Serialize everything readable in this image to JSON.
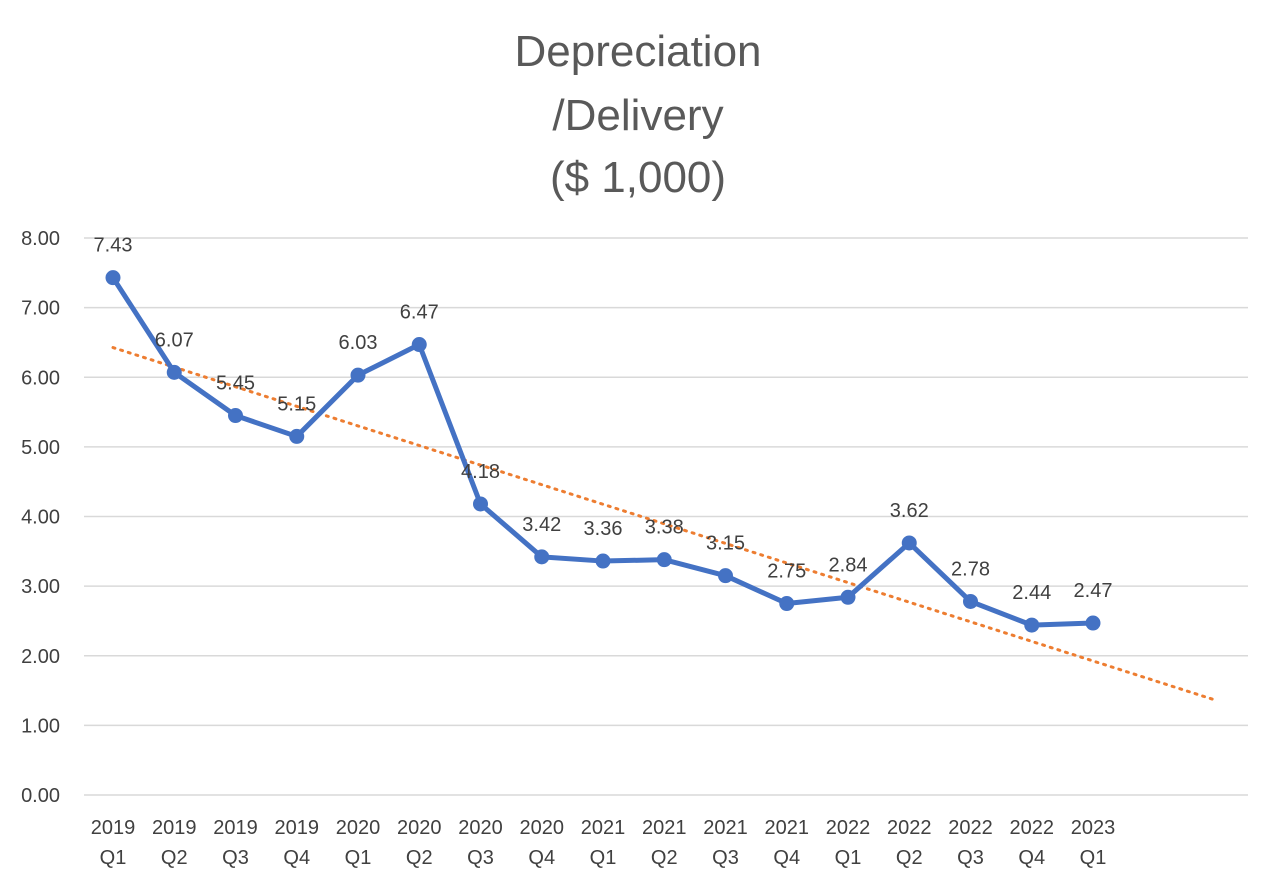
{
  "chart_data": {
    "type": "line",
    "title_lines": [
      "Depreciation",
      "/Delivery",
      "($ 1,000)"
    ],
    "categories": [
      [
        "2019",
        "Q1"
      ],
      [
        "2019",
        "Q2"
      ],
      [
        "2019",
        "Q3"
      ],
      [
        "2019",
        "Q4"
      ],
      [
        "2020",
        "Q1"
      ],
      [
        "2020",
        "Q2"
      ],
      [
        "2020",
        "Q3"
      ],
      [
        "2020",
        "Q4"
      ],
      [
        "2021",
        "Q1"
      ],
      [
        "2021",
        "Q2"
      ],
      [
        "2021",
        "Q3"
      ],
      [
        "2021",
        "Q4"
      ],
      [
        "2022",
        "Q1"
      ],
      [
        "2022",
        "Q2"
      ],
      [
        "2022",
        "Q3"
      ],
      [
        "2022",
        "Q4"
      ],
      [
        "2023",
        "Q1"
      ]
    ],
    "values": [
      7.43,
      6.07,
      5.45,
      5.15,
      6.03,
      6.47,
      4.18,
      3.42,
      3.36,
      3.38,
      3.15,
      2.75,
      2.84,
      3.62,
      2.78,
      2.44,
      2.47
    ],
    "data_labels": [
      "7.43",
      "6.07",
      "5.45",
      "5.15",
      "6.03",
      "6.47",
      "4.18",
      "3.42",
      "3.36",
      "3.38",
      "3.15",
      "2.75",
      "2.84",
      "3.62",
      "2.78",
      "2.44",
      "2.47"
    ],
    "yticks": [
      "0.00",
      "1.00",
      "2.00",
      "3.00",
      "4.00",
      "5.00",
      "6.00",
      "7.00",
      "8.00"
    ],
    "ylim": [
      0,
      8
    ],
    "grid": true,
    "trendline": {
      "type": "linear",
      "style": "dotted",
      "forward_periods": 2
    },
    "colors": {
      "series": "#4472c4",
      "trendline": "#ed7d31",
      "grid": "#d9d9d9",
      "title": "#595959",
      "text": "#404040"
    }
  }
}
